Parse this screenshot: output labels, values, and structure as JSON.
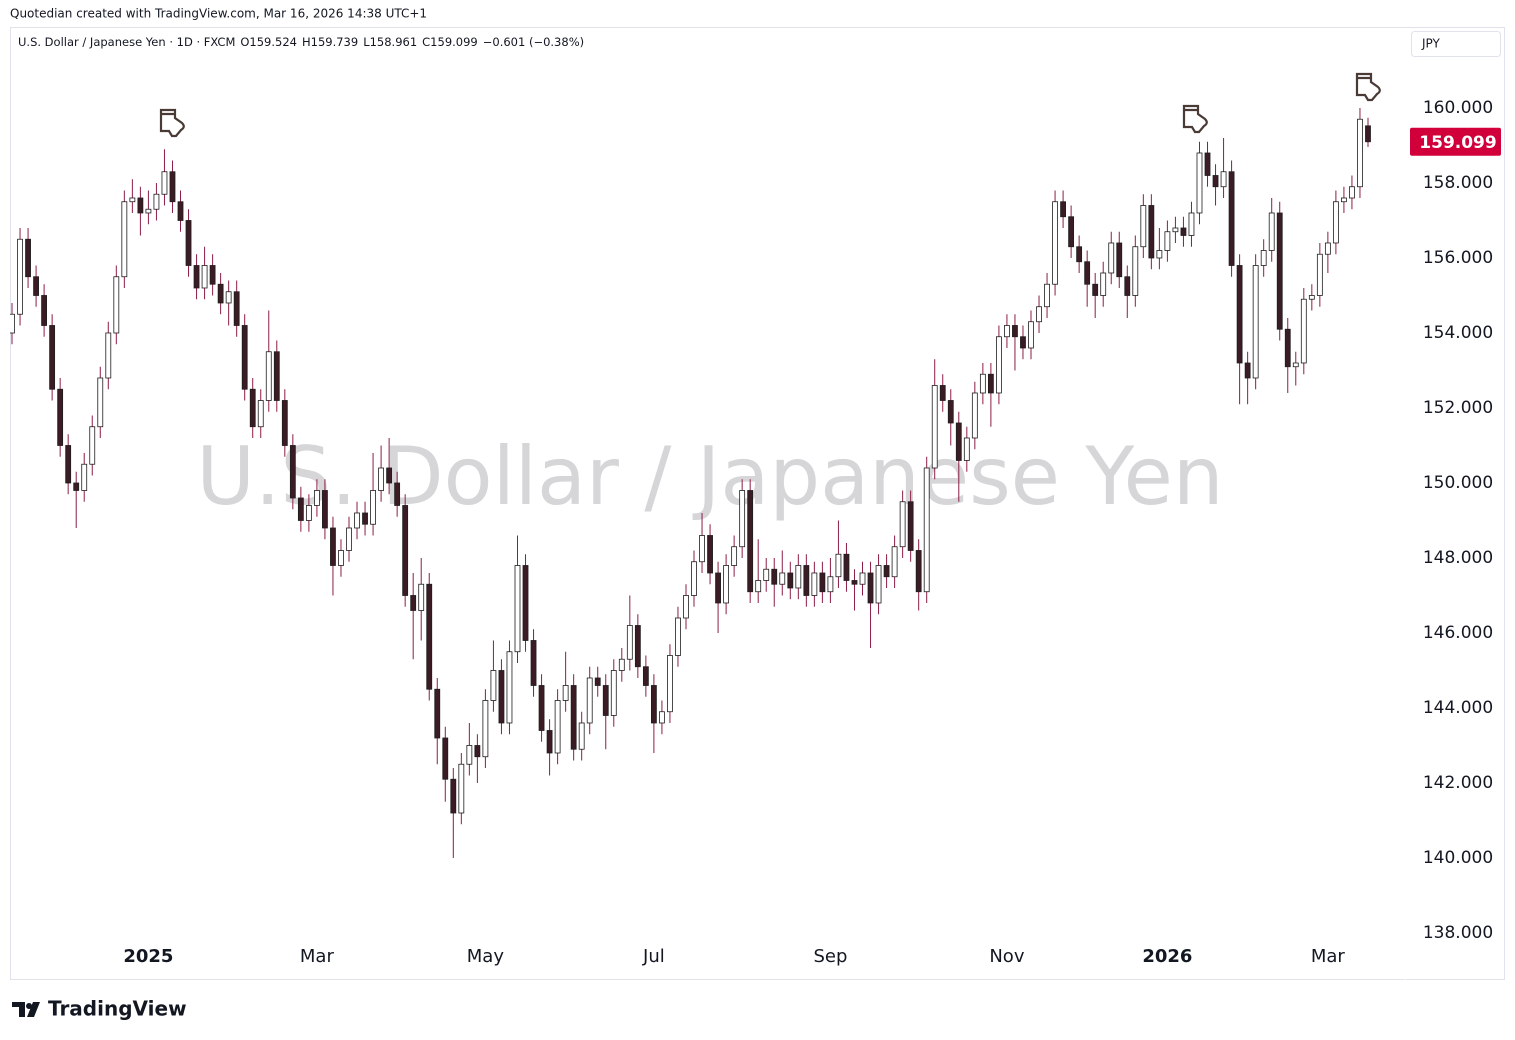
{
  "credit": "Quotedian created with TradingView.com, Mar 16, 2026 14:38 UTC+1",
  "header": {
    "symbol": "U.S. Dollar / Japanese Yen · 1D · FXCM",
    "open": "O159.524",
    "high": "H159.739",
    "low": "L158.961",
    "close": "C159.099",
    "change": "−0.601 (−0.38%)"
  },
  "currency": "JPY",
  "brand": "TradingView",
  "chart_data": {
    "type": "candlestick",
    "watermark": "U.S. Dollar / Japanese Yen",
    "categories": [
      null,
      null,
      null,
      null,
      null,
      null,
      null,
      null,
      null,
      null,
      null,
      null,
      null,
      null,
      null,
      null,
      null,
      "2025",
      null,
      null,
      null,
      null,
      null,
      null,
      null,
      null,
      null,
      null,
      null,
      null,
      null,
      null,
      null,
      null,
      null,
      null,
      null,
      null,
      "Mar",
      null,
      null,
      null,
      null,
      null,
      null,
      null,
      null,
      null,
      null,
      null,
      null,
      null,
      null,
      null,
      null,
      null,
      null,
      null,
      null,
      "May",
      null,
      null,
      null,
      null,
      null,
      null,
      null,
      null,
      null,
      null,
      null,
      null,
      null,
      null,
      null,
      null,
      null,
      null,
      null,
      null,
      "Jul",
      null,
      null,
      null,
      null,
      null,
      null,
      null,
      null,
      null,
      null,
      null,
      null,
      null,
      null,
      null,
      null,
      null,
      null,
      null,
      null,
      null,
      "Sep",
      null,
      null,
      null,
      null,
      null,
      null,
      null,
      null,
      null,
      null,
      null,
      null,
      null,
      null,
      null,
      null,
      null,
      null,
      null,
      null,
      null,
      "Nov",
      null,
      null,
      null,
      null,
      null,
      null,
      null,
      null,
      null,
      null,
      null,
      null,
      null,
      null,
      null,
      null,
      null,
      null,
      null,
      "2026",
      null,
      null,
      null,
      null,
      null,
      null,
      null,
      null,
      null,
      null,
      null,
      null,
      null,
      null,
      null,
      null,
      null,
      null,
      null,
      "Mar",
      null,
      null,
      null,
      null,
      null
    ],
    "open": [
      154.0,
      154.5,
      156.5,
      155.5,
      155.0,
      154.2,
      152.5,
      151.0,
      150.0,
      149.8,
      150.5,
      151.5,
      152.8,
      154.0,
      155.5,
      157.5,
      157.6,
      157.2,
      157.3,
      157.7,
      158.3,
      157.5,
      157.0,
      155.8,
      155.2,
      155.8,
      155.3,
      154.8,
      155.1,
      154.2,
      152.5,
      151.5,
      152.2,
      153.5,
      152.2,
      151.0,
      149.6,
      149.0,
      149.4,
      149.8,
      148.8,
      147.8,
      148.2,
      148.8,
      149.2,
      148.9,
      149.8,
      150.4,
      150.0,
      149.4,
      147.0,
      146.6,
      147.3,
      144.5,
      143.2,
      142.1,
      141.2,
      142.5,
      143.0,
      142.7,
      144.2,
      145.0,
      143.6,
      145.5,
      147.8,
      145.8,
      144.6,
      143.4,
      142.8,
      144.2,
      144.6,
      142.9,
      143.6,
      144.8,
      144.6,
      143.8,
      145.0,
      145.3,
      146.2,
      145.1,
      144.6,
      143.6,
      143.9,
      145.4,
      146.4,
      147.0,
      147.9,
      148.6,
      147.6,
      146.8,
      147.8,
      148.3,
      149.8,
      147.1,
      147.4,
      147.7,
      147.3,
      147.6,
      147.2,
      147.8,
      147.0,
      147.6,
      147.1,
      147.5,
      148.1,
      147.4,
      147.3,
      147.6,
      146.8,
      147.8,
      147.5,
      148.3,
      149.5,
      148.2,
      147.1,
      150.4,
      152.6,
      152.2,
      151.6,
      150.6,
      151.2,
      152.4,
      152.9,
      152.4,
      153.9,
      154.2,
      153.9,
      153.6,
      154.3,
      154.7,
      155.3,
      157.5,
      157.1,
      156.3,
      155.9,
      155.3,
      155.0,
      155.6,
      156.4,
      155.5,
      155.0,
      156.3,
      157.4,
      156.0,
      156.2,
      156.7,
      156.8,
      156.6,
      157.2,
      158.8,
      158.2,
      157.9,
      158.3,
      155.8,
      153.2,
      152.8,
      155.8,
      156.2,
      157.2,
      154.1,
      153.1,
      153.2,
      154.9,
      155.0,
      156.1,
      156.4,
      157.5,
      157.6,
      157.9,
      159.524
    ],
    "high": [
      154.8,
      156.8,
      156.8,
      155.8,
      155.3,
      154.5,
      152.8,
      151.3,
      150.3,
      150.8,
      151.8,
      153.1,
      154.3,
      155.8,
      157.8,
      158.1,
      157.9,
      157.8,
      158.0,
      158.9,
      158.6,
      157.8,
      157.3,
      156.1,
      156.3,
      156.1,
      155.6,
      155.4,
      155.4,
      154.5,
      152.8,
      152.5,
      154.6,
      153.8,
      152.5,
      151.3,
      149.9,
      149.7,
      150.1,
      150.1,
      149.1,
      148.5,
      149.1,
      149.5,
      149.5,
      150.8,
      151.0,
      151.2,
      150.3,
      149.7,
      147.6,
      148.0,
      147.6,
      144.8,
      143.5,
      142.4,
      142.8,
      143.6,
      143.3,
      144.5,
      145.8,
      145.3,
      145.8,
      148.6,
      148.1,
      146.1,
      144.9,
      143.7,
      144.5,
      145.5,
      144.9,
      143.9,
      145.1,
      145.1,
      144.9,
      145.3,
      145.6,
      147.0,
      146.5,
      145.4,
      144.9,
      144.2,
      145.7,
      146.7,
      147.3,
      148.2,
      149.2,
      148.9,
      147.9,
      148.1,
      148.6,
      150.1,
      150.1,
      148.5,
      148.0,
      148.0,
      148.2,
      147.9,
      148.1,
      148.1,
      147.9,
      147.9,
      148.0,
      149.0,
      148.4,
      147.7,
      147.9,
      147.9,
      148.1,
      148.1,
      148.6,
      149.8,
      149.8,
      148.5,
      150.7,
      153.3,
      152.9,
      152.5,
      151.9,
      151.5,
      152.7,
      153.2,
      153.2,
      154.2,
      154.5,
      154.5,
      154.2,
      154.6,
      155.0,
      155.6,
      157.8,
      157.8,
      157.4,
      156.6,
      156.2,
      155.6,
      155.9,
      156.7,
      156.7,
      155.8,
      156.6,
      157.7,
      157.7,
      156.8,
      157.0,
      157.1,
      157.1,
      157.5,
      159.1,
      159.1,
      158.5,
      159.2,
      158.6,
      156.1,
      153.5,
      156.1,
      156.5,
      157.6,
      157.5,
      154.4,
      153.5,
      155.2,
      155.3,
      156.4,
      156.7,
      157.8,
      157.9,
      158.2,
      160.0,
      159.739
    ],
    "low": [
      153.7,
      154.2,
      155.2,
      154.7,
      153.9,
      152.2,
      150.7,
      149.7,
      148.8,
      149.5,
      150.2,
      151.2,
      152.5,
      153.7,
      155.2,
      157.2,
      156.6,
      156.9,
      157.0,
      157.4,
      157.2,
      156.7,
      155.5,
      154.9,
      154.9,
      155.0,
      154.5,
      154.2,
      153.9,
      152.2,
      151.2,
      151.2,
      151.9,
      151.9,
      150.7,
      149.3,
      148.7,
      148.7,
      149.1,
      148.5,
      147.0,
      147.5,
      147.9,
      148.5,
      148.6,
      148.6,
      149.5,
      149.7,
      149.1,
      146.7,
      145.3,
      145.8,
      144.2,
      142.5,
      141.5,
      140.0,
      140.9,
      142.2,
      142.0,
      142.4,
      143.9,
      143.3,
      143.3,
      145.2,
      145.5,
      144.3,
      143.1,
      142.2,
      142.5,
      143.9,
      142.6,
      142.6,
      143.3,
      144.3,
      142.9,
      143.5,
      144.7,
      145.0,
      144.8,
      144.3,
      142.8,
      143.3,
      143.6,
      145.1,
      146.1,
      146.7,
      147.6,
      147.3,
      146.0,
      146.5,
      147.5,
      148.0,
      146.8,
      146.8,
      147.1,
      146.7,
      147.0,
      146.9,
      146.9,
      146.7,
      146.7,
      146.8,
      146.8,
      147.2,
      147.1,
      146.6,
      147.0,
      145.6,
      146.5,
      147.2,
      147.2,
      148.0,
      147.9,
      146.6,
      146.8,
      150.1,
      151.9,
      151.0,
      149.5,
      150.3,
      150.9,
      152.1,
      151.5,
      152.1,
      153.6,
      153.0,
      153.3,
      153.3,
      154.0,
      154.4,
      155.0,
      156.8,
      156.0,
      155.6,
      154.7,
      154.4,
      154.7,
      155.3,
      155.2,
      154.4,
      154.7,
      156.0,
      155.7,
      155.7,
      155.9,
      156.4,
      156.3,
      156.3,
      156.9,
      157.9,
      157.4,
      157.6,
      155.5,
      152.1,
      152.1,
      152.5,
      155.5,
      155.9,
      153.8,
      152.4,
      152.6,
      152.9,
      154.6,
      154.7,
      155.6,
      156.1,
      157.2,
      157.3,
      157.6,
      158.961
    ],
    "close": [
      154.5,
      156.5,
      155.5,
      155.0,
      154.2,
      152.5,
      151.0,
      150.0,
      149.8,
      150.5,
      151.5,
      152.8,
      154.0,
      155.5,
      157.5,
      157.6,
      157.2,
      157.3,
      157.7,
      158.3,
      157.5,
      157.0,
      155.8,
      155.2,
      155.8,
      155.3,
      154.8,
      155.1,
      154.2,
      152.5,
      151.5,
      152.2,
      153.5,
      152.2,
      151.0,
      149.6,
      149.0,
      149.4,
      149.8,
      148.8,
      147.8,
      148.2,
      148.8,
      149.2,
      148.9,
      149.8,
      150.4,
      150.0,
      149.4,
      147.0,
      146.6,
      147.3,
      144.5,
      143.2,
      142.1,
      141.2,
      142.5,
      143.0,
      142.7,
      144.2,
      145.0,
      143.6,
      145.5,
      147.8,
      145.8,
      144.6,
      143.4,
      142.8,
      144.2,
      144.6,
      142.9,
      143.6,
      144.8,
      144.6,
      143.8,
      145.0,
      145.3,
      146.2,
      145.1,
      144.6,
      143.6,
      143.9,
      145.4,
      146.4,
      147.0,
      147.9,
      148.6,
      147.6,
      146.8,
      147.8,
      148.3,
      149.8,
      147.1,
      147.4,
      147.7,
      147.3,
      147.6,
      147.2,
      147.8,
      147.0,
      147.6,
      147.1,
      147.5,
      148.1,
      147.4,
      147.3,
      147.6,
      146.8,
      147.8,
      147.5,
      148.3,
      149.5,
      148.2,
      147.1,
      150.4,
      152.6,
      152.2,
      151.6,
      150.6,
      151.2,
      152.4,
      152.9,
      152.4,
      153.9,
      154.2,
      153.9,
      153.6,
      154.3,
      154.7,
      155.3,
      157.5,
      157.1,
      156.3,
      155.9,
      155.3,
      155.0,
      155.6,
      156.4,
      155.5,
      155.0,
      156.3,
      157.4,
      156.0,
      156.2,
      156.7,
      156.8,
      156.6,
      157.2,
      158.8,
      158.2,
      157.9,
      158.3,
      155.8,
      153.2,
      152.8,
      155.8,
      156.2,
      157.2,
      154.1,
      153.1,
      153.2,
      154.9,
      155.0,
      156.1,
      156.4,
      157.5,
      157.6,
      157.9,
      159.7,
      159.099
    ],
    "last_price_label": "159.099",
    "up_color": "#ffffff",
    "down_color": "#3b1c24",
    "wick_color": "#8c1d47",
    "price_box_color": "#d1003a",
    "ylim": [
      137.813,
      162.133
    ],
    "yticks": [
      {
        "value": 138,
        "label": "138.000"
      },
      {
        "value": 140,
        "label": "140.000"
      },
      {
        "value": 142,
        "label": "142.000"
      },
      {
        "value": 144,
        "label": "144.000"
      },
      {
        "value": 146,
        "label": "146.000"
      },
      {
        "value": 148,
        "label": "148.000"
      },
      {
        "value": 150,
        "label": "150.000"
      },
      {
        "value": 152,
        "label": "152.000"
      },
      {
        "value": 154,
        "label": "154.000"
      },
      {
        "value": 156,
        "label": "156.000"
      },
      {
        "value": 158,
        "label": "158.000"
      },
      {
        "value": 160,
        "label": "160.000"
      }
    ],
    "grid": false
  }
}
